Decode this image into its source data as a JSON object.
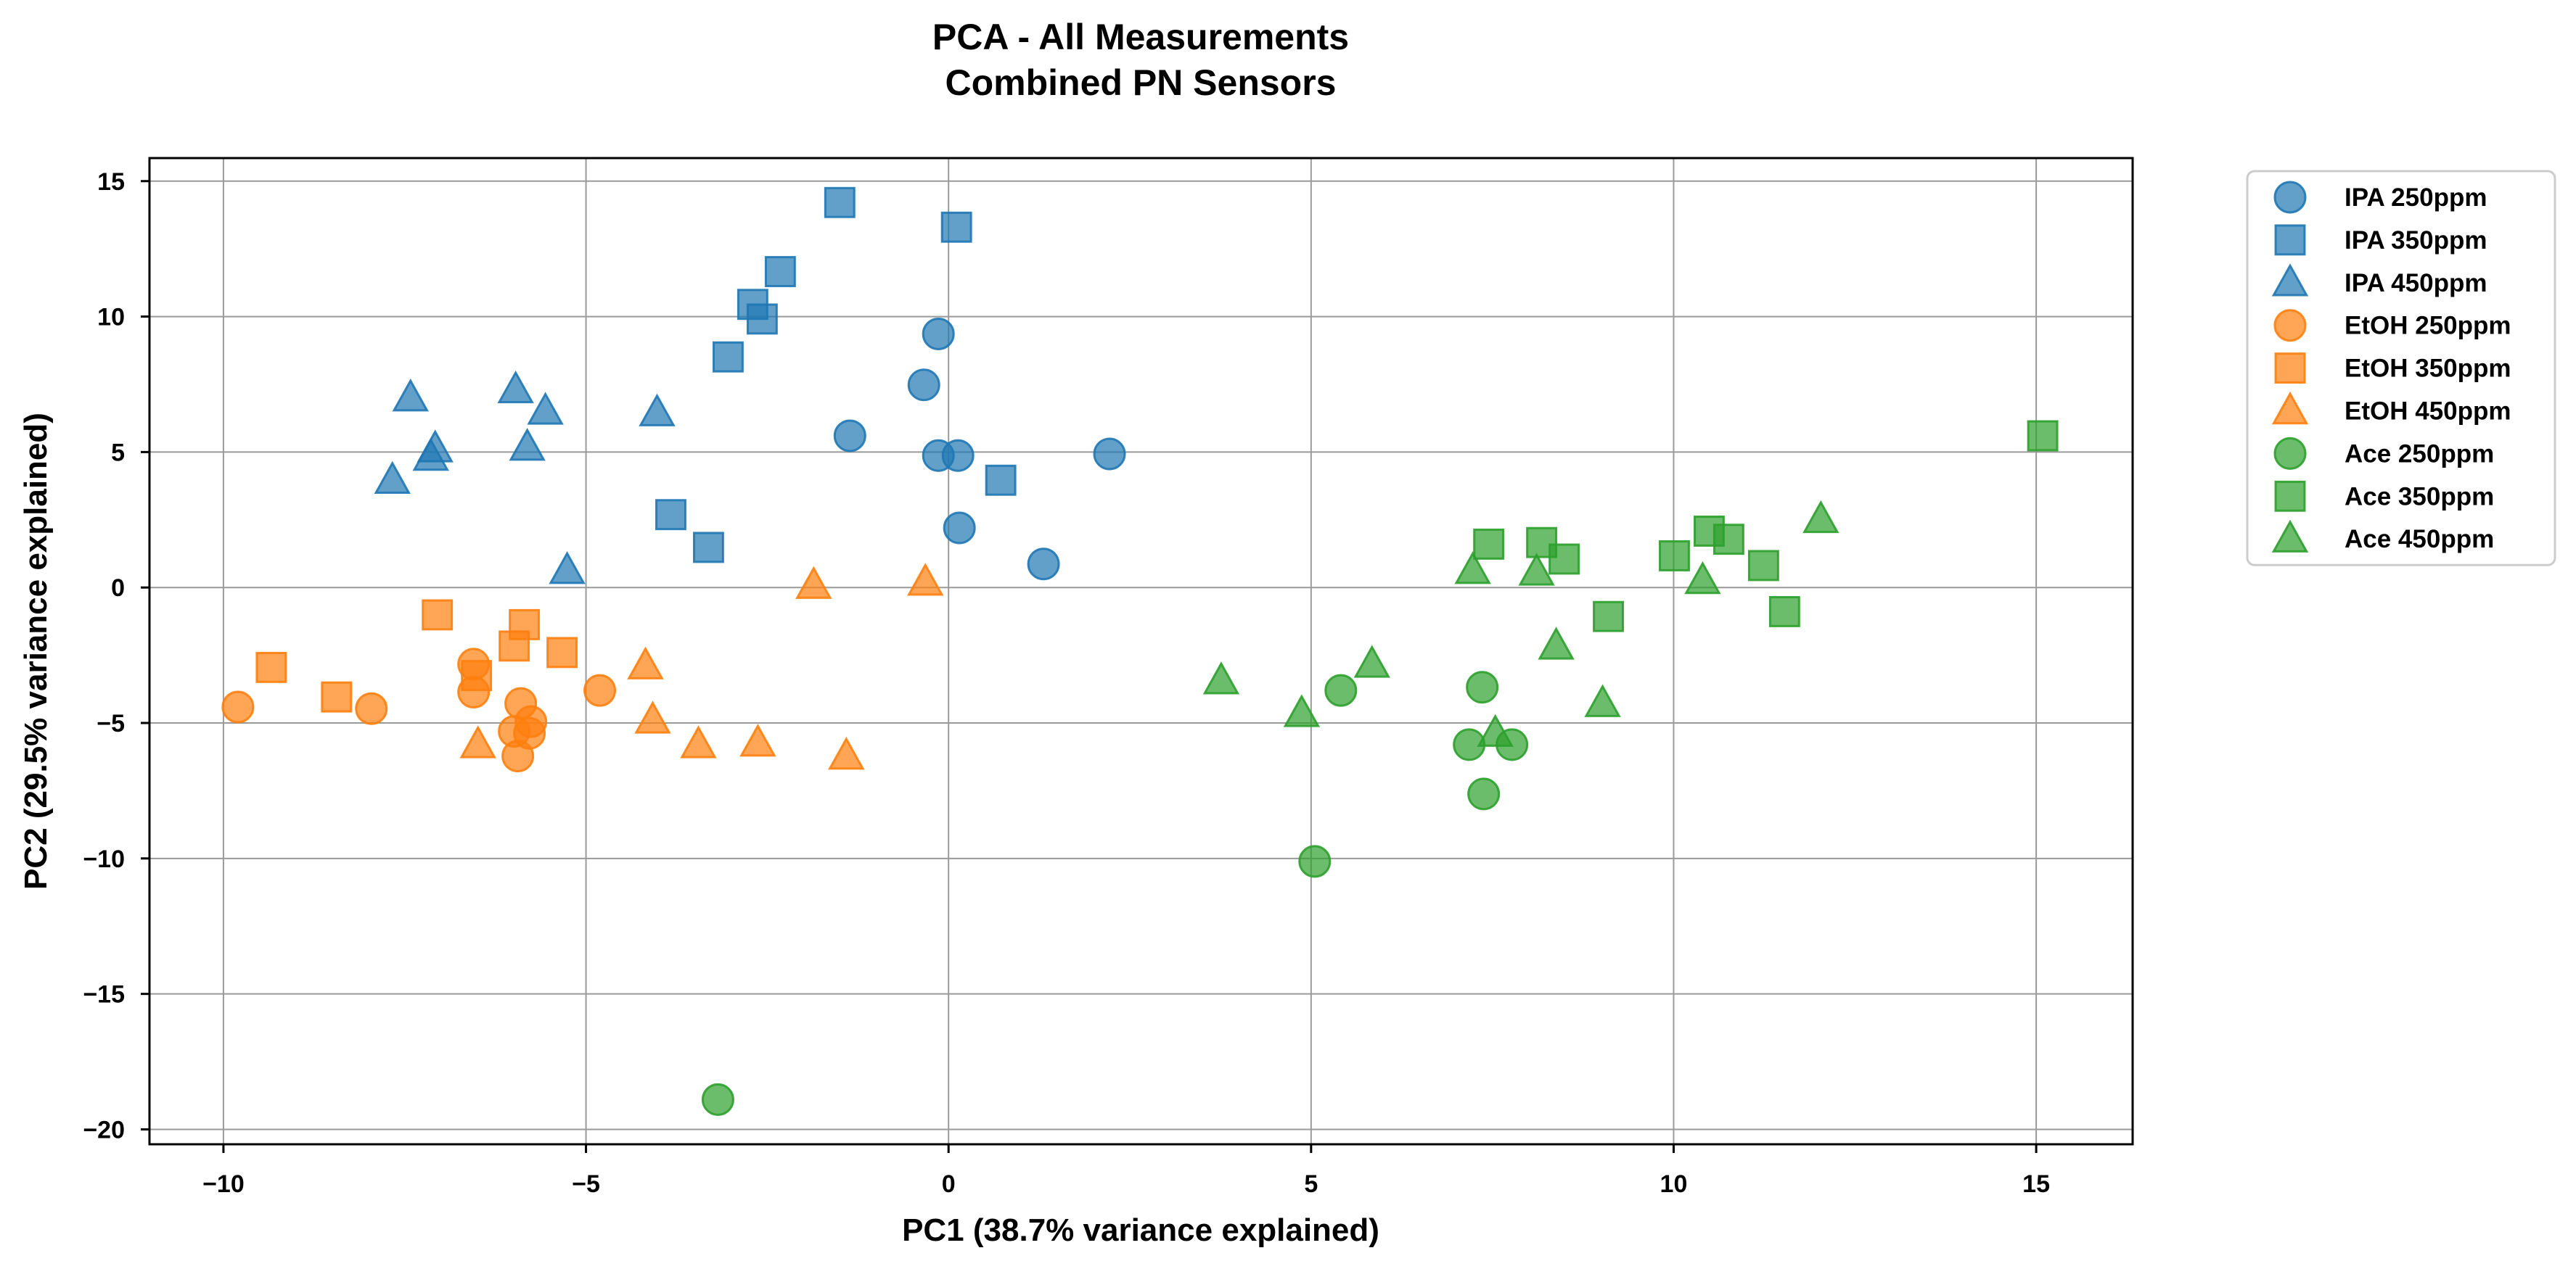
{
  "chart_data": {
    "type": "scatter",
    "title": "PCA - All Measurements",
    "subtitle": "Combined PN Sensors",
    "xlabel": "PC1 (38.7% variance explained)",
    "ylabel": "PC2 (29.5% variance explained)",
    "xlim": [
      -11.02,
      16.33
    ],
    "ylim": [
      -20.55,
      15.85
    ],
    "xticks": [
      -10,
      -5,
      0,
      5,
      10,
      15
    ],
    "xtick_labels": [
      "−10",
      "−5",
      "0",
      "5",
      "10",
      "15"
    ],
    "yticks": [
      -20,
      -15,
      -10,
      -5,
      0,
      5,
      10,
      15
    ],
    "ytick_labels": [
      "−20",
      "−15",
      "−10",
      "−5",
      "0",
      "5",
      "10",
      "15"
    ],
    "grid": true,
    "legend": "outside-upper-right",
    "series": [
      {
        "name": "IPA 250ppm",
        "marker": "circle",
        "color": "#1f77b4",
        "points": [
          [
            -0.14,
            9.36
          ],
          [
            -0.34,
            7.48
          ],
          [
            -1.36,
            5.6
          ],
          [
            -0.14,
            4.87
          ],
          [
            0.13,
            4.87
          ],
          [
            2.22,
            4.93
          ],
          [
            0.15,
            2.2
          ],
          [
            1.31,
            0.87
          ]
        ]
      },
      {
        "name": "IPA 350ppm",
        "marker": "square",
        "color": "#1f77b4",
        "points": [
          [
            -1.5,
            14.21
          ],
          [
            0.11,
            13.3
          ],
          [
            -2.32,
            11.66
          ],
          [
            -2.7,
            10.45
          ],
          [
            -2.57,
            9.91
          ],
          [
            -3.04,
            8.51
          ],
          [
            0.72,
            3.96
          ],
          [
            -3.83,
            2.69
          ],
          [
            -3.31,
            1.48
          ]
        ]
      },
      {
        "name": "IPA 450ppm",
        "marker": "triangle",
        "color": "#1f77b4",
        "points": [
          [
            -7.42,
            7.0
          ],
          [
            -5.97,
            7.3
          ],
          [
            -5.56,
            6.51
          ],
          [
            -4.02,
            6.45
          ],
          [
            -7.08,
            5.12
          ],
          [
            -7.14,
            4.81
          ],
          [
            -5.81,
            5.18
          ],
          [
            -7.67,
            3.96
          ],
          [
            -5.26,
            0.63
          ]
        ]
      },
      {
        "name": "EtOH 250ppm",
        "marker": "circle",
        "color": "#ff7f0e",
        "points": [
          [
            -9.8,
            -4.41
          ],
          [
            -7.96,
            -4.47
          ],
          [
            -6.55,
            -2.83
          ],
          [
            -6.55,
            -3.86
          ],
          [
            -5.9,
            -4.28
          ],
          [
            -5.76,
            -4.95
          ],
          [
            -5.99,
            -5.31
          ],
          [
            -5.78,
            -5.38
          ],
          [
            -5.94,
            -6.22
          ],
          [
            -4.81,
            -3.8
          ]
        ]
      },
      {
        "name": "EtOH 350ppm",
        "marker": "square",
        "color": "#ff7f0e",
        "points": [
          [
            -9.34,
            -2.95
          ],
          [
            -8.44,
            -4.04
          ],
          [
            -7.05,
            -1.01
          ],
          [
            -6.51,
            -3.25
          ],
          [
            -5.99,
            -2.16
          ],
          [
            -5.85,
            -1.37
          ],
          [
            -5.33,
            -2.4
          ]
        ]
      },
      {
        "name": "EtOH 450ppm",
        "marker": "triangle",
        "color": "#ff7f0e",
        "points": [
          [
            -1.86,
            0.08
          ],
          [
            -0.32,
            0.2
          ],
          [
            -4.18,
            -2.89
          ],
          [
            -4.08,
            -4.89
          ],
          [
            -6.49,
            -5.8
          ],
          [
            -3.45,
            -5.8
          ],
          [
            -2.63,
            -5.74
          ],
          [
            -1.41,
            -6.22
          ]
        ]
      },
      {
        "name": "Ace 250ppm",
        "marker": "circle",
        "color": "#2ca02c",
        "points": [
          [
            -3.18,
            -18.9
          ],
          [
            5.05,
            -10.11
          ],
          [
            5.41,
            -3.8
          ],
          [
            7.36,
            -3.68
          ],
          [
            7.18,
            -5.8
          ],
          [
            7.77,
            -5.8
          ],
          [
            7.38,
            -7.62
          ]
        ]
      },
      {
        "name": "Ace 350ppm",
        "marker": "square",
        "color": "#2ca02c",
        "points": [
          [
            15.09,
            5.6
          ],
          [
            10.49,
            2.08
          ],
          [
            10.76,
            1.78
          ],
          [
            10.01,
            1.17
          ],
          [
            7.45,
            1.6
          ],
          [
            8.18,
            1.66
          ],
          [
            8.49,
            1.05
          ],
          [
            11.24,
            0.81
          ],
          [
            9.1,
            -1.07
          ],
          [
            11.53,
            -0.89
          ]
        ]
      },
      {
        "name": "Ace 450ppm",
        "marker": "triangle",
        "color": "#2ca02c",
        "points": [
          [
            12.03,
            2.51
          ],
          [
            7.23,
            0.63
          ],
          [
            8.11,
            0.57
          ],
          [
            10.4,
            0.26
          ],
          [
            3.76,
            -3.44
          ],
          [
            5.84,
            -2.83
          ],
          [
            8.38,
            -2.16
          ],
          [
            9.02,
            -4.28
          ],
          [
            4.87,
            -4.65
          ],
          [
            7.54,
            -5.38
          ]
        ]
      }
    ]
  }
}
